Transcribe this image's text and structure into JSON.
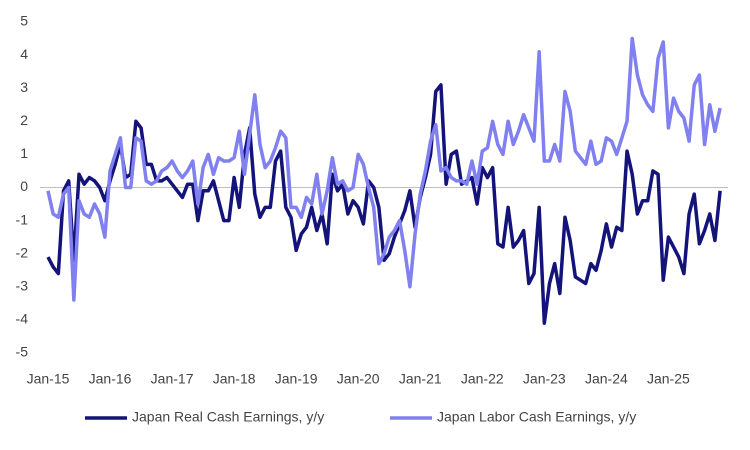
{
  "chart_data": {
    "type": "line",
    "categories": [
      "Jan-15",
      null,
      null,
      null,
      null,
      null,
      null,
      null,
      null,
      null,
      null,
      null,
      "Jan-16",
      null,
      null,
      null,
      null,
      null,
      null,
      null,
      null,
      null,
      null,
      null,
      "Jan-17",
      null,
      null,
      null,
      null,
      null,
      null,
      null,
      null,
      null,
      null,
      null,
      "Jan-18",
      null,
      null,
      null,
      null,
      null,
      null,
      null,
      null,
      null,
      null,
      null,
      "Jan-19",
      null,
      null,
      null,
      null,
      null,
      null,
      null,
      null,
      null,
      null,
      null,
      "Jan-20",
      null,
      null,
      null,
      null,
      null,
      null,
      null,
      null,
      null,
      null,
      null,
      "Jan-21",
      null,
      null,
      null,
      null,
      null,
      null,
      null,
      null,
      null,
      null,
      null,
      "Jan-22",
      null,
      null,
      null,
      null,
      null,
      null,
      null,
      null,
      null,
      null,
      null,
      "Jan-23",
      null,
      null,
      null,
      null,
      null,
      null,
      null,
      null,
      null,
      null,
      null,
      "Jan-24",
      null,
      null,
      null,
      null,
      null,
      null,
      null,
      null,
      null,
      null,
      null,
      "Jan-25",
      null,
      null,
      null,
      null,
      null,
      null,
      null,
      null,
      null,
      null
    ],
    "series": [
      {
        "name": "Japan Real Cash Earnings, y/y",
        "color": "#14137a",
        "values": [
          -2.1,
          -2.4,
          -2.6,
          -0.1,
          0.2,
          -2.2,
          0.4,
          0.1,
          0.3,
          0.2,
          0,
          -0.4,
          0.2,
          0.7,
          1.3,
          0.3,
          0.4,
          2.0,
          1.8,
          0.7,
          0.7,
          0.2,
          0.2,
          0.3,
          0.1,
          -0.1,
          -0.3,
          0.1,
          0.1,
          -1.0,
          -0.1,
          -0.1,
          0.2,
          -0.4,
          -1.0,
          -1.0,
          0.3,
          -0.6,
          1.0,
          1.8,
          -0.2,
          -0.9,
          -0.6,
          -0.6,
          0.8,
          1.1,
          -0.6,
          -0.9,
          -1.9,
          -1.4,
          -1.2,
          -0.6,
          -1.3,
          -0.8,
          -1.7,
          0.4,
          -0.1,
          0.1,
          -0.8,
          -0.4,
          -0.6,
          -1.1,
          0.2,
          0.0,
          -0.6,
          -2.2,
          -2.0,
          -1.5,
          -1.1,
          -0.7,
          -0.1,
          -1.2,
          -0.3,
          0.3,
          1.0,
          2.9,
          3.1,
          0.1,
          1.0,
          1.1,
          0.1,
          0.2,
          0.3,
          -0.5,
          0.6,
          0.3,
          0.6,
          -1.7,
          -1.8,
          -0.6,
          -1.8,
          -1.6,
          -1.3,
          -2.9,
          -2.6,
          -0.6,
          -4.1,
          -2.9,
          -2.3,
          -3.2,
          -0.9,
          -1.6,
          -2.7,
          -2.8,
          -2.9,
          -2.3,
          -2.5,
          -1.9,
          -1.1,
          -1.8,
          -1.2,
          -1.3,
          1.1,
          0.4,
          -0.8,
          -0.4,
          -0.4,
          0.5,
          0.4,
          -2.8,
          -1.5,
          -1.8,
          -2.1,
          -2.6,
          -0.8,
          -0.2,
          -1.7,
          -1.3,
          -0.8,
          -1.6,
          -0.1
        ]
      },
      {
        "name": "Japan Labor Cash Earnings, y/y",
        "color": "#8080f0",
        "values": [
          -0.1,
          -0.8,
          -0.9,
          -0.2,
          0,
          -3.4,
          -0.4,
          -0.8,
          -0.9,
          -0.5,
          -0.8,
          -1.5,
          0.5,
          1.0,
          1.5,
          0,
          0,
          1.5,
          1.4,
          0.2,
          0.1,
          0.2,
          0.5,
          0.6,
          0.8,
          0.5,
          0.3,
          0.5,
          0.8,
          -0.5,
          0.6,
          1.0,
          0.4,
          0.9,
          0.8,
          0.8,
          0.9,
          1.7,
          0.4,
          1.6,
          2.8,
          1.3,
          0.6,
          0.8,
          1.2,
          1.7,
          1.5,
          -0.6,
          -0.6,
          -0.9,
          -0.3,
          -0.5,
          0.4,
          -0.8,
          -0.1,
          0.9,
          0.1,
          0.2,
          -0.1,
          0.0,
          1.0,
          0.7,
          0,
          -0.6,
          -2.3,
          -2.0,
          -1.5,
          -1.3,
          -1.0,
          -1.9,
          -3.0,
          -1.4,
          -0.2,
          0.5,
          1.4,
          1.9,
          0.5,
          0.6,
          0.3,
          0.2,
          0.2,
          0.1,
          0.8,
          0.1,
          1.1,
          1.2,
          2.0,
          1.3,
          1.0,
          2.0,
          1.3,
          1.7,
          2.2,
          1.8,
          1.4,
          4.1,
          0.8,
          0.8,
          1.3,
          0.8,
          2.9,
          2.3,
          1.1,
          0.9,
          0.7,
          1.4,
          0.7,
          0.8,
          1.5,
          1.4,
          1.0,
          1.5,
          2.0,
          4.5,
          3.4,
          2.8,
          2.5,
          2.3,
          3.9,
          4.4,
          1.8,
          2.7,
          2.3,
          2.1,
          1.4,
          3.1,
          3.4,
          1.3,
          2.5,
          1.7,
          2.4
        ]
      }
    ],
    "ylim": [
      -5,
      5
    ],
    "yticks": [
      -5,
      -4,
      -3,
      -2,
      -1,
      0,
      1,
      2,
      3,
      4,
      5
    ],
    "grid": false,
    "legend": "bottom"
  }
}
